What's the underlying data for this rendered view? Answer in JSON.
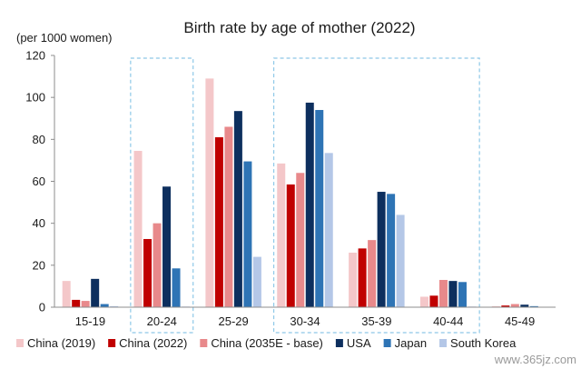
{
  "chart_data": {
    "type": "bar",
    "title": "Birth rate by age of mother (2022)",
    "ylabel": "(per 1000 women)",
    "xlabel": "",
    "ylim": [
      0,
      120
    ],
    "yticks": [
      0,
      20,
      40,
      60,
      80,
      100,
      120
    ],
    "grid": false,
    "legend_position": "bottom",
    "categories": [
      "15-19",
      "20-24",
      "25-29",
      "30-34",
      "35-39",
      "40-44",
      "45-49"
    ],
    "highlighted_categories": [
      "20-24",
      "30-34",
      "35-39",
      "40-44"
    ],
    "series": [
      {
        "name": "China (2019)",
        "color": "#f4c7c9",
        "values": [
          12.5,
          74.5,
          109,
          68.5,
          26,
          5,
          0.5
        ]
      },
      {
        "name": "China (2022)",
        "color": "#c00000",
        "values": [
          3.5,
          32.5,
          81,
          58.5,
          28,
          5.5,
          0.8
        ]
      },
      {
        "name": "China (2035E - base)",
        "color": "#e8898b",
        "values": [
          3,
          40,
          86,
          64,
          32,
          13,
          1.5
        ]
      },
      {
        "name": "USA",
        "color": "#0d2f5e",
        "values": [
          13.5,
          57.5,
          93.5,
          97.5,
          55,
          12.5,
          1.2
        ]
      },
      {
        "name": "Japan",
        "color": "#2e74b5",
        "values": [
          1.5,
          18.5,
          69.5,
          94,
          54,
          12,
          0.5
        ]
      },
      {
        "name": "South Korea",
        "color": "#b4c7e7",
        "values": [
          0.5,
          0.3,
          24,
          73.5,
          44,
          0.3,
          0.2
        ]
      }
    ]
  },
  "watermark": "www.365jz.com"
}
